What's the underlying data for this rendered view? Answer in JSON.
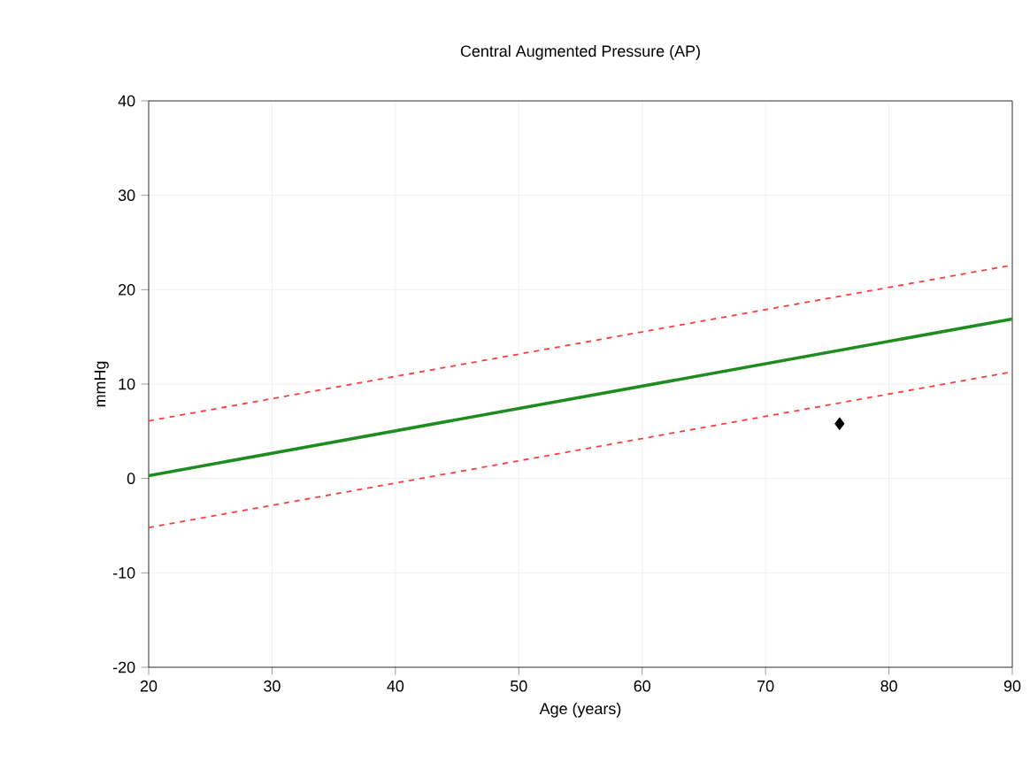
{
  "chart_data": {
    "type": "line",
    "title": "Central Augmented Pressure (AP)",
    "xlabel": "Age (years)",
    "ylabel": "mmHg",
    "xlim": [
      20,
      90
    ],
    "xticks": [
      20,
      30,
      40,
      50,
      60,
      70,
      80,
      90
    ],
    "ylim": [
      -20,
      40
    ],
    "yticks": [
      -20,
      -10,
      0,
      10,
      20,
      30,
      40
    ],
    "grid": true,
    "series": [
      {
        "color": "#ff3b3b",
        "line_style": "dashed",
        "x": [
          20,
          90
        ],
        "values": [
          6.1,
          22.6
        ]
      },
      {
        "color": "#1e8c1e",
        "line_style": "solid",
        "x": [
          20,
          90
        ],
        "values": [
          0.3,
          16.9
        ]
      },
      {
        "color": "#ff3b3b",
        "line_style": "dashed",
        "x": [
          20,
          90
        ],
        "values": [
          -5.2,
          11.3
        ]
      },
      {
        "type": "scatter",
        "color": "#000000",
        "marker": "diamond",
        "x": [
          76
        ],
        "values": [
          5.8
        ]
      }
    ]
  }
}
